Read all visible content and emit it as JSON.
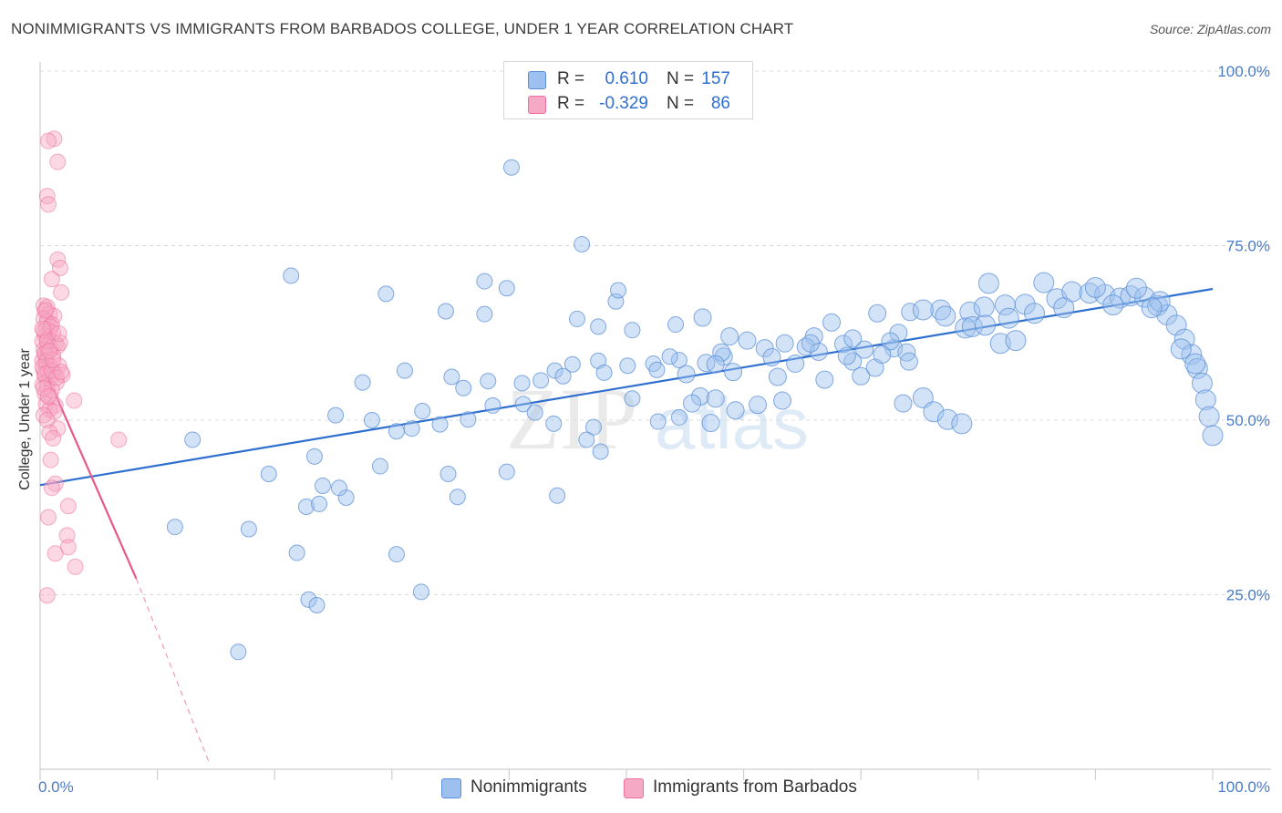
{
  "header": {
    "title": "NONIMMIGRANTS VS IMMIGRANTS FROM BARBADOS COLLEGE, UNDER 1 YEAR CORRELATION CHART",
    "source": "Source: ZipAtlas.com"
  },
  "watermark": {
    "zip": "ZIP",
    "atlas": "atlas"
  },
  "legend": {
    "rows": [
      {
        "r_label": "R =",
        "r_value": "0.610",
        "n_label": "N =",
        "n_value": "157",
        "color": "#9dc0ee"
      },
      {
        "r_label": "R =",
        "r_value": "-0.329",
        "n_label": "N =",
        "n_value": "86",
        "color": "#f6a9c4"
      }
    ]
  },
  "bottom_legend": [
    {
      "label": "Nonimmigrants",
      "color": "#9dc0ee"
    },
    {
      "label": "Immigrants from Barbados",
      "color": "#f6a9c4"
    }
  ],
  "chart_data": {
    "type": "scatter",
    "title": "NONIMMIGRANTS VS IMMIGRANTS FROM BARBADOS COLLEGE, UNDER 1 YEAR CORRELATION CHART",
    "xlabel": "",
    "ylabel": "College, Under 1 year",
    "x_tick_labels": [
      "0.0%",
      "100.0%"
    ],
    "y_tick_labels": [
      "25.0%",
      "50.0%",
      "75.0%",
      "100.0%"
    ],
    "y_ticks": [
      25,
      50,
      75,
      100
    ],
    "xlim": [
      0,
      100
    ],
    "ylim": [
      0,
      100
    ],
    "grid": true,
    "legend_position": "top-center",
    "series": [
      {
        "name": "Nonimmigrants",
        "color": "#6ea0e3",
        "trend": {
          "x": [
            0,
            100
          ],
          "y": [
            40.7,
            68.8
          ]
        },
        "points": [
          [
            40.2,
            86.2
          ],
          [
            46.2,
            75.2
          ],
          [
            21.4,
            70.7
          ],
          [
            37.9,
            69.9
          ],
          [
            39.8,
            68.9
          ],
          [
            29.5,
            68.1
          ],
          [
            49.1,
            67.0
          ],
          [
            49.3,
            68.6
          ],
          [
            34.6,
            65.6
          ],
          [
            37.9,
            65.2
          ],
          [
            45.8,
            64.5
          ],
          [
            50.5,
            62.9
          ],
          [
            56.5,
            64.7
          ],
          [
            47.6,
            63.4
          ],
          [
            54.2,
            63.7
          ],
          [
            58.8,
            62.0
          ],
          [
            66.0,
            62.0
          ],
          [
            67.5,
            64.0
          ],
          [
            71.4,
            65.3
          ],
          [
            74.2,
            65.5
          ],
          [
            76.8,
            65.8
          ],
          [
            79.3,
            65.5
          ],
          [
            80.5,
            66.2
          ],
          [
            82.3,
            66.5
          ],
          [
            84.0,
            66.6
          ],
          [
            86.7,
            67.4
          ],
          [
            88.0,
            68.4
          ],
          [
            89.5,
            68.2
          ],
          [
            90.8,
            68.0
          ],
          [
            92.1,
            67.5
          ],
          [
            93.0,
            67.8
          ],
          [
            94.2,
            67.6
          ],
          [
            95.3,
            66.4
          ],
          [
            96.1,
            65.1
          ],
          [
            96.9,
            63.6
          ],
          [
            97.6,
            61.6
          ],
          [
            98.2,
            59.4
          ],
          [
            98.7,
            57.4
          ],
          [
            99.1,
            55.3
          ],
          [
            99.4,
            52.9
          ],
          [
            99.7,
            50.5
          ],
          [
            100.0,
            47.8
          ],
          [
            80.9,
            69.6
          ],
          [
            85.6,
            69.7
          ],
          [
            90.0,
            69.0
          ],
          [
            93.5,
            68.9
          ],
          [
            95.5,
            67.0
          ],
          [
            75.3,
            65.8
          ],
          [
            77.2,
            64.9
          ],
          [
            78.9,
            63.2
          ],
          [
            82.6,
            64.6
          ],
          [
            84.8,
            65.3
          ],
          [
            87.3,
            66.1
          ],
          [
            91.5,
            66.5
          ],
          [
            94.8,
            66.1
          ],
          [
            97.3,
            60.2
          ],
          [
            98.5,
            58.1
          ],
          [
            60.3,
            61.4
          ],
          [
            61.8,
            60.3
          ],
          [
            63.5,
            61.0
          ],
          [
            65.3,
            60.5
          ],
          [
            66.4,
            59.8
          ],
          [
            68.5,
            60.9
          ],
          [
            70.3,
            60.1
          ],
          [
            72.8,
            60.3
          ],
          [
            73.9,
            59.7
          ],
          [
            62.4,
            59.0
          ],
          [
            64.4,
            58.1
          ],
          [
            69.3,
            58.4
          ],
          [
            71.2,
            57.5
          ],
          [
            74.1,
            58.4
          ],
          [
            56.8,
            58.2
          ],
          [
            58.3,
            59.1
          ],
          [
            54.5,
            58.6
          ],
          [
            52.3,
            58.1
          ],
          [
            50.1,
            57.8
          ],
          [
            47.6,
            58.5
          ],
          [
            45.4,
            58.0
          ],
          [
            43.9,
            57.1
          ],
          [
            41.1,
            55.3
          ],
          [
            42.7,
            55.7
          ],
          [
            44.6,
            56.3
          ],
          [
            48.1,
            56.8
          ],
          [
            52.6,
            57.2
          ],
          [
            55.1,
            56.6
          ],
          [
            59.1,
            56.9
          ],
          [
            62.9,
            56.2
          ],
          [
            66.9,
            55.8
          ],
          [
            70.0,
            56.3
          ],
          [
            69.3,
            61.7
          ],
          [
            35.1,
            56.2
          ],
          [
            38.2,
            55.6
          ],
          [
            36.1,
            54.6
          ],
          [
            31.1,
            57.1
          ],
          [
            27.5,
            55.4
          ],
          [
            50.5,
            53.1
          ],
          [
            56.3,
            53.4
          ],
          [
            55.6,
            52.4
          ],
          [
            57.6,
            53.1
          ],
          [
            59.3,
            51.4
          ],
          [
            61.2,
            52.2
          ],
          [
            63.3,
            52.8
          ],
          [
            73.6,
            52.4
          ],
          [
            75.3,
            53.2
          ],
          [
            76.2,
            51.2
          ],
          [
            77.4,
            50.1
          ],
          [
            78.6,
            49.5
          ],
          [
            41.2,
            52.3
          ],
          [
            42.2,
            51.1
          ],
          [
            43.8,
            49.5
          ],
          [
            32.6,
            51.3
          ],
          [
            34.1,
            49.4
          ],
          [
            36.5,
            50.1
          ],
          [
            38.6,
            52.1
          ],
          [
            25.2,
            50.7
          ],
          [
            28.3,
            50.0
          ],
          [
            30.4,
            48.4
          ],
          [
            47.2,
            49.0
          ],
          [
            52.7,
            49.8
          ],
          [
            54.5,
            50.4
          ],
          [
            57.2,
            49.6
          ],
          [
            23.4,
            44.8
          ],
          [
            39.8,
            42.6
          ],
          [
            34.8,
            42.3
          ],
          [
            29.0,
            43.4
          ],
          [
            26.1,
            38.9
          ],
          [
            25.5,
            40.3
          ],
          [
            24.1,
            40.6
          ],
          [
            22.7,
            37.6
          ],
          [
            23.8,
            38.0
          ],
          [
            35.6,
            39.0
          ],
          [
            44.1,
            39.2
          ],
          [
            46.6,
            47.2
          ],
          [
            31.7,
            48.8
          ],
          [
            47.8,
            45.5
          ],
          [
            21.9,
            31.0
          ],
          [
            13.0,
            47.2
          ],
          [
            11.5,
            34.7
          ],
          [
            19.5,
            42.3
          ],
          [
            17.8,
            34.4
          ],
          [
            30.4,
            30.8
          ],
          [
            22.9,
            24.3
          ],
          [
            32.5,
            25.4
          ],
          [
            16.9,
            16.8
          ],
          [
            23.6,
            23.5
          ],
          [
            79.5,
            63.4
          ],
          [
            80.6,
            63.6
          ],
          [
            73.2,
            62.5
          ],
          [
            72.5,
            61.3
          ],
          [
            71.8,
            59.4
          ],
          [
            68.8,
            59.2
          ],
          [
            65.7,
            61.0
          ],
          [
            58.1,
            59.7
          ],
          [
            57.6,
            58.0
          ],
          [
            53.7,
            59.1
          ],
          [
            81.9,
            61.0
          ],
          [
            83.2,
            61.4
          ]
        ]
      },
      {
        "name": "Immigrants from Barbados",
        "color": "#ee6f9e",
        "trend": {
          "x": [
            0,
            8.2
          ],
          "y": [
            58.7,
            27.3
          ],
          "dash_x": [
            8.2,
            14.4
          ],
          "dash_y": [
            27.3,
            1.0
          ]
        },
        "points": [
          [
            1.2,
            90.3
          ],
          [
            0.7,
            90.0
          ],
          [
            1.5,
            87.0
          ],
          [
            0.6,
            82.1
          ],
          [
            0.7,
            80.9
          ],
          [
            1.5,
            73.0
          ],
          [
            1.7,
            71.8
          ],
          [
            1.0,
            70.2
          ],
          [
            1.8,
            68.3
          ],
          [
            0.3,
            66.4
          ],
          [
            0.6,
            66.2
          ],
          [
            0.4,
            65.6
          ],
          [
            0.8,
            65.2
          ],
          [
            1.2,
            64.9
          ],
          [
            0.3,
            64.5
          ],
          [
            0.6,
            64.1
          ],
          [
            1.0,
            63.7
          ],
          [
            0.5,
            63.0
          ],
          [
            0.8,
            62.7
          ],
          [
            1.1,
            62.5
          ],
          [
            0.4,
            62.1
          ],
          [
            0.7,
            61.7
          ],
          [
            0.2,
            61.3
          ],
          [
            1.3,
            61.0
          ],
          [
            0.6,
            60.6
          ],
          [
            0.9,
            60.4
          ],
          [
            0.3,
            60.1
          ],
          [
            1.5,
            60.6
          ],
          [
            0.7,
            59.8
          ],
          [
            0.4,
            59.4
          ],
          [
            1.1,
            59.2
          ],
          [
            0.2,
            58.6
          ],
          [
            0.5,
            58.1
          ],
          [
            0.9,
            57.7
          ],
          [
            1.6,
            57.8
          ],
          [
            0.3,
            57.2
          ],
          [
            0.7,
            56.9
          ],
          [
            1.2,
            56.7
          ],
          [
            1.9,
            56.5
          ],
          [
            0.4,
            56.2
          ],
          [
            0.8,
            55.9
          ],
          [
            1.4,
            55.4
          ],
          [
            0.2,
            55.1
          ],
          [
            0.6,
            54.8
          ],
          [
            1.0,
            54.4
          ],
          [
            0.4,
            53.8
          ],
          [
            0.9,
            53.3
          ],
          [
            2.9,
            52.8
          ],
          [
            0.5,
            52.3
          ],
          [
            1.3,
            52.1
          ],
          [
            0.8,
            51.5
          ],
          [
            1.2,
            51.2
          ],
          [
            0.3,
            50.7
          ],
          [
            0.6,
            50.0
          ],
          [
            1.5,
            48.8
          ],
          [
            0.8,
            48.2
          ],
          [
            1.1,
            47.4
          ],
          [
            6.7,
            47.2
          ],
          [
            0.9,
            44.3
          ],
          [
            1.3,
            40.9
          ],
          [
            1.0,
            40.3
          ],
          [
            2.4,
            37.7
          ],
          [
            0.7,
            36.1
          ],
          [
            2.3,
            33.5
          ],
          [
            2.4,
            31.8
          ],
          [
            1.3,
            30.9
          ],
          [
            3.0,
            29.0
          ],
          [
            0.6,
            24.9
          ],
          [
            0.4,
            59.6
          ],
          [
            0.5,
            58.4
          ],
          [
            0.3,
            62.8
          ],
          [
            0.2,
            57.6
          ],
          [
            0.9,
            63.4
          ],
          [
            0.6,
            61.4
          ],
          [
            1.7,
            61.1
          ],
          [
            0.4,
            56.6
          ],
          [
            1.0,
            57.1
          ],
          [
            1.4,
            56.1
          ],
          [
            0.3,
            54.6
          ],
          [
            0.7,
            53.4
          ],
          [
            1.8,
            56.9
          ],
          [
            0.2,
            63.1
          ],
          [
            1.1,
            58.6
          ],
          [
            0.5,
            65.8
          ],
          [
            0.8,
            59.9
          ],
          [
            1.6,
            62.4
          ]
        ]
      }
    ]
  }
}
